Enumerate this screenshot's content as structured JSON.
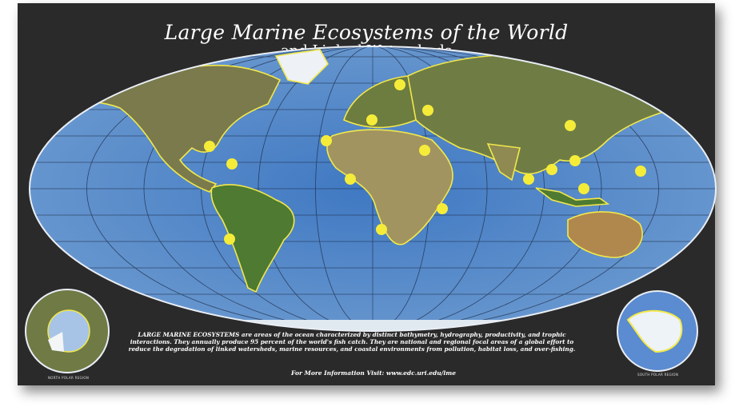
{
  "header": {
    "title": "Large Marine Ecosystems of the World",
    "subtitle": "and Linked Watersheds"
  },
  "description": {
    "lead": "LARGE MARINE ECOSYSTEMS",
    "text": " are areas of the ocean characterized by distinct bathymetry, hydrography, productivity, and trophic interactions. They annually produce 95 percent of the world's fish catch.  They are national and regional focal areas of a global effort to reduce the degradation of linked watersheds, marine resources, and coastal environments from pollution, habitat loss, and over-fishing."
  },
  "footer": {
    "info": "For More Information Visit:  www.edc.uri.edu/lme"
  },
  "insets": {
    "north": "NORTH POLAR REGION",
    "south": "SOUTH POLAR REGION"
  },
  "colors": {
    "background": "#2b2a2a",
    "ocean": "#4a7fc0",
    "land": "#6f7a45",
    "boundary": "#f2e84a",
    "marker": "#f5ec3a",
    "ice": "#e8f0f8"
  }
}
